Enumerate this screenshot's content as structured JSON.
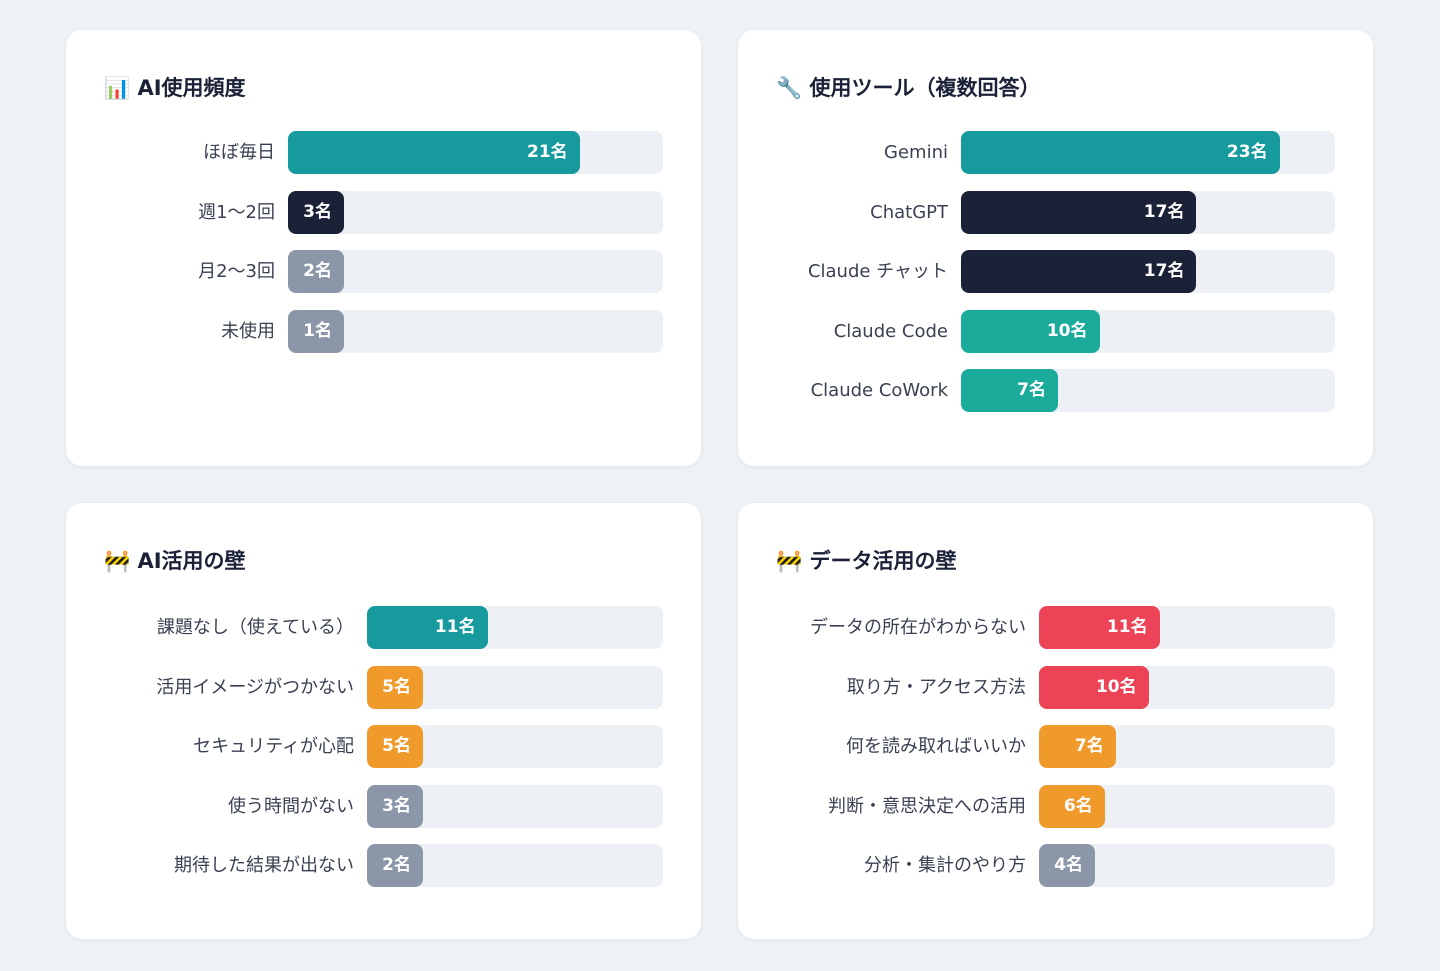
{
  "chart_data": [
    {
      "type": "bar",
      "title": "📊 AI使用頻度",
      "categories": [
        "ほぼ毎日",
        "週1〜2回",
        "月2〜3回",
        "未使用"
      ],
      "values": [
        21,
        3,
        2,
        1
      ],
      "value_labels": [
        "21名",
        "3名",
        "2名",
        "1名"
      ],
      "colors": [
        "#169a9e",
        "#1b2238",
        "#8b96a9",
        "#8b96a9"
      ],
      "xlim": [
        0,
        27
      ]
    },
    {
      "type": "bar",
      "title": "🔧 使用ツール（複数回答）",
      "categories": [
        "Gemini",
        "ChatGPT",
        "Claude チャット",
        "Claude Code",
        "Claude CoWork"
      ],
      "values": [
        23,
        17,
        17,
        10,
        7
      ],
      "value_labels": [
        "23名",
        "17名",
        "17名",
        "10名",
        "7名"
      ],
      "colors": [
        "#169a9e",
        "#1b2238",
        "#1b2238",
        "#1aab9b",
        "#1aab9b"
      ],
      "xlim": [
        0,
        27
      ]
    },
    {
      "type": "bar",
      "title": "🚧 AI活用の壁",
      "categories": [
        "課題なし（使えている）",
        "活用イメージがつかない",
        "セキュリティが心配",
        "使う時間がない",
        "期待した結果が出ない"
      ],
      "values": [
        11,
        5,
        5,
        3,
        2
      ],
      "value_labels": [
        "11名",
        "5名",
        "5名",
        "3名",
        "2名"
      ],
      "colors": [
        "#169a9e",
        "#f19a2c",
        "#f19a2c",
        "#8b96a9",
        "#8b96a9"
      ],
      "xlim": [
        0,
        27
      ]
    },
    {
      "type": "bar",
      "title": "🚧 データ活用の壁",
      "categories": [
        "データの所在がわからない",
        "取り方・アクセス方法",
        "何を読み取ればいいか",
        "判断・意思決定への活用",
        "分析・集計のやり方"
      ],
      "values": [
        11,
        10,
        7,
        6,
        4
      ],
      "value_labels": [
        "11名",
        "10名",
        "7名",
        "6名",
        "4名"
      ],
      "colors": [
        "#ec4357",
        "#ec4357",
        "#f19a2c",
        "#f19a2c",
        "#8b96a9"
      ],
      "xlim": [
        0,
        27
      ]
    }
  ]
}
